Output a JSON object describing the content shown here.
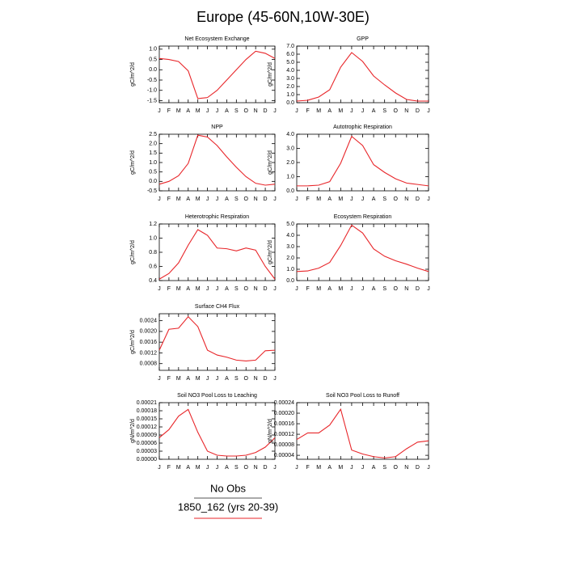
{
  "title": "Europe (45-60N,10W-30E)",
  "legend": [
    {
      "name": "No Obs",
      "color": "#555555"
    },
    {
      "name": "1850_162 (yrs 20-39)",
      "color": "#e8262a"
    }
  ],
  "chart_data": [
    {
      "type": "line",
      "title": "Net Ecosystem Exchange",
      "ylabel": "gC/m^2/d",
      "categories": [
        "J",
        "F",
        "M",
        "A",
        "M",
        "J",
        "J",
        "A",
        "S",
        "O",
        "N",
        "D",
        "J"
      ],
      "color": "#e8262a",
      "values": [
        0.55,
        0.5,
        0.4,
        -0.05,
        -1.4,
        -1.35,
        -1.0,
        -0.5,
        0.0,
        0.5,
        0.9,
        0.8,
        0.55
      ],
      "ylim": [
        -1.6,
        1.15
      ],
      "yticks": [
        {
          "value": 1,
          "label": "1.0"
        },
        0.5,
        {
          "value": 0,
          "label": "0.0"
        },
        -0.5,
        {
          "value": -1,
          "label": "-1.0"
        },
        -1.5
      ]
    },
    {
      "type": "line",
      "title": "GPP",
      "ylabel": "gC/m^2/d",
      "categories": [
        "J",
        "F",
        "M",
        "A",
        "M",
        "J",
        "J",
        "A",
        "S",
        "O",
        "N",
        "D",
        "J"
      ],
      "color": "#e8262a",
      "values": [
        0.2,
        0.3,
        0.7,
        1.6,
        4.4,
        6.2,
        5.1,
        3.3,
        2.2,
        1.2,
        0.4,
        0.2,
        0.2
      ],
      "ylim": [
        0,
        7
      ],
      "yticks": [
        {
          "value": 0,
          "label": "0.0"
        },
        {
          "value": 1,
          "label": "1.0"
        },
        {
          "value": 2,
          "label": "2.0"
        },
        {
          "value": 3,
          "label": "3.0"
        },
        {
          "value": 4,
          "label": "4.0"
        },
        {
          "value": 5,
          "label": "5.0"
        },
        {
          "value": 6,
          "label": "6.0"
        },
        {
          "value": 7,
          "label": "7.0"
        }
      ]
    },
    {
      "type": "line",
      "title": "NPP",
      "ylabel": "gC/m^2/d",
      "categories": [
        "J",
        "F",
        "M",
        "A",
        "M",
        "J",
        "J",
        "A",
        "S",
        "O",
        "N",
        "D",
        "J"
      ],
      "color": "#e8262a",
      "values": [
        -0.15,
        0.0,
        0.3,
        0.95,
        2.45,
        2.35,
        1.9,
        1.3,
        0.75,
        0.25,
        -0.1,
        -0.2,
        -0.15
      ],
      "ylim": [
        -0.5,
        2.5
      ],
      "yticks": [
        -0.5,
        {
          "value": 0,
          "label": "0.0"
        },
        0.5,
        {
          "value": 1,
          "label": "1.0"
        },
        1.5,
        {
          "value": 2,
          "label": "2.0"
        },
        2.5
      ]
    },
    {
      "type": "line",
      "title": "Autotrophic Respiration",
      "ylabel": "gC/m^2/d",
      "categories": [
        "J",
        "F",
        "M",
        "A",
        "M",
        "J",
        "J",
        "A",
        "S",
        "O",
        "N",
        "D",
        "J"
      ],
      "color": "#e8262a",
      "values": [
        0.35,
        0.35,
        0.4,
        0.65,
        1.95,
        3.85,
        3.2,
        1.85,
        1.3,
        0.85,
        0.55,
        0.45,
        0.35
      ],
      "ylim": [
        0,
        4
      ],
      "yticks": [
        {
          "value": 0,
          "label": "0.0"
        },
        {
          "value": 1,
          "label": "1.0"
        },
        {
          "value": 2,
          "label": "2.0"
        },
        {
          "value": 3,
          "label": "3.0"
        },
        {
          "value": 4,
          "label": "4.0"
        }
      ]
    },
    {
      "type": "line",
      "title": "Heterotrophic Respiration",
      "ylabel": "gC/m^2/d",
      "categories": [
        "J",
        "F",
        "M",
        "A",
        "M",
        "J",
        "J",
        "A",
        "S",
        "O",
        "N",
        "D",
        "J"
      ],
      "color": "#e8262a",
      "values": [
        0.42,
        0.5,
        0.65,
        0.9,
        1.12,
        1.04,
        0.86,
        0.85,
        0.82,
        0.86,
        0.83,
        0.6,
        0.42
      ],
      "ylim": [
        0.4,
        1.2
      ],
      "yticks": [
        0.4,
        0.6,
        0.8,
        {
          "value": 1,
          "label": "1.0"
        },
        1.2
      ]
    },
    {
      "type": "line",
      "title": "Ecosystem Respiration",
      "ylabel": "gC/m^2/d",
      "categories": [
        "J",
        "F",
        "M",
        "A",
        "M",
        "J",
        "J",
        "A",
        "S",
        "O",
        "N",
        "D",
        "J"
      ],
      "color": "#e8262a",
      "values": [
        0.8,
        0.85,
        1.1,
        1.6,
        3.1,
        4.9,
        4.2,
        2.8,
        2.15,
        1.75,
        1.45,
        1.1,
        0.8
      ],
      "ylim": [
        0,
        5
      ],
      "yticks": [
        {
          "value": 0,
          "label": "0.0"
        },
        {
          "value": 1,
          "label": "1.0"
        },
        {
          "value": 2,
          "label": "2.0"
        },
        {
          "value": 3,
          "label": "3.0"
        },
        {
          "value": 4,
          "label": "4.0"
        },
        {
          "value": 5,
          "label": "5.0"
        }
      ]
    },
    {
      "type": "line",
      "title": "Surface CH4 Flux",
      "ylabel": "gC/m^2/d",
      "categories": [
        "J",
        "F",
        "M",
        "A",
        "M",
        "J",
        "J",
        "A",
        "S",
        "O",
        "N",
        "D",
        "J"
      ],
      "color": "#e8262a",
      "values": [
        0.0013,
        0.00208,
        0.00212,
        0.00255,
        0.00218,
        0.0013,
        0.00112,
        0.00104,
        0.00093,
        0.0009,
        0.00093,
        0.00128,
        0.0013
      ],
      "ylim": [
        0.00055,
        0.00266
      ],
      "yticks": [
        0.0008,
        0.0012,
        0.0016,
        {
          "value": 0.002,
          "label": "0.0020"
        },
        0.0024
      ]
    },
    {
      "type": "line",
      "title": "Soil NO3 Pool Loss to Leaching",
      "ylabel": "gN/m^2/d",
      "categories": [
        "J",
        "F",
        "M",
        "A",
        "M",
        "J",
        "J",
        "A",
        "S",
        "O",
        "N",
        "D",
        "J"
      ],
      "color": "#e8262a",
      "values": [
        8e-05,
        0.00011,
        0.00016,
        0.000185,
        0.0001,
        3e-05,
        1.5e-05,
        1.2e-05,
        1.2e-05,
        1.5e-05,
        2.5e-05,
        4.5e-05,
        8e-05
      ],
      "ylim": [
        0,
        0.00021
      ],
      "yticks": [
        {
          "value": 0,
          "label": "0.00000"
        },
        {
          "value": 3e-05,
          "label": "0.00003"
        },
        {
          "value": 6e-05,
          "label": "0.00006"
        },
        {
          "value": 9e-05,
          "label": "0.00009"
        },
        {
          "value": 0.00012,
          "label": "0.00012"
        },
        {
          "value": 0.00015,
          "label": "0.00015"
        },
        {
          "value": 0.00018,
          "label": "0.00018"
        },
        {
          "value": 0.00021,
          "label": "0.00021"
        }
      ]
    },
    {
      "type": "line",
      "title": "Soil NO3 Pool Loss to Runoff",
      "ylabel": "gN/m^2/d",
      "categories": [
        "J",
        "F",
        "M",
        "A",
        "M",
        "J",
        "J",
        "A",
        "S",
        "O",
        "N",
        "D",
        "J"
      ],
      "color": "#e8262a",
      "values": [
        0.0001,
        0.000125,
        0.000125,
        0.000155,
        0.000215,
        6e-05,
        4.5e-05,
        3.5e-05,
        3e-05,
        3.5e-05,
        6.5e-05,
        9e-05,
        9.5e-05
      ],
      "ylim": [
        2.5e-05,
        0.00024
      ],
      "yticks": [
        {
          "value": 4e-05,
          "label": "0.00004"
        },
        {
          "value": 8e-05,
          "label": "0.00008"
        },
        {
          "value": 0.00012,
          "label": "0.00012"
        },
        {
          "value": 0.00016,
          "label": "0.00016"
        },
        {
          "value": 0.0002,
          "label": "0.00020"
        },
        {
          "value": 0.00024,
          "label": "0.00024"
        }
      ]
    }
  ]
}
